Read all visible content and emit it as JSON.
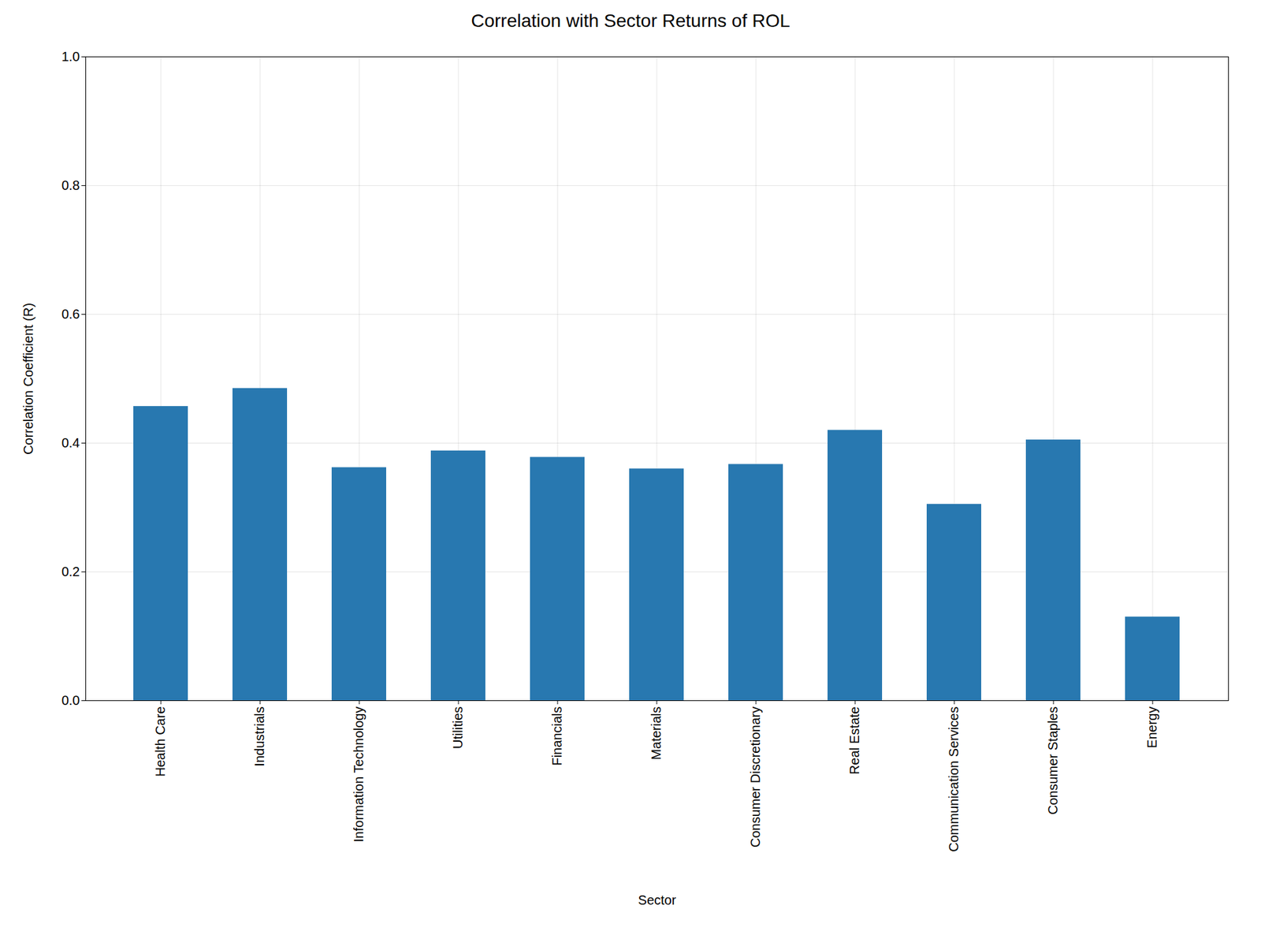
{
  "chart_data": {
    "type": "bar",
    "title": "Correlation with Sector Returns of ROL",
    "xlabel": "Sector",
    "ylabel": "Correlation Coefficient (R)",
    "categories": [
      "Health Care",
      "Industrials",
      "Information Technology",
      "Utilities",
      "Financials",
      "Materials",
      "Consumer Discretionary",
      "Real Estate",
      "Communication Services",
      "Consumer Staples",
      "Energy"
    ],
    "values": [
      0.457,
      0.485,
      0.362,
      0.388,
      0.378,
      0.36,
      0.367,
      0.42,
      0.305,
      0.405,
      0.13
    ],
    "color": "#2878b0",
    "ylim": [
      0.0,
      1.0
    ],
    "yticks": [
      {
        "value": 0,
        "label": "0.0"
      },
      0.2,
      0.4,
      0.6,
      0.8,
      {
        "value": 1,
        "label": "1.0"
      }
    ],
    "grid": true
  }
}
